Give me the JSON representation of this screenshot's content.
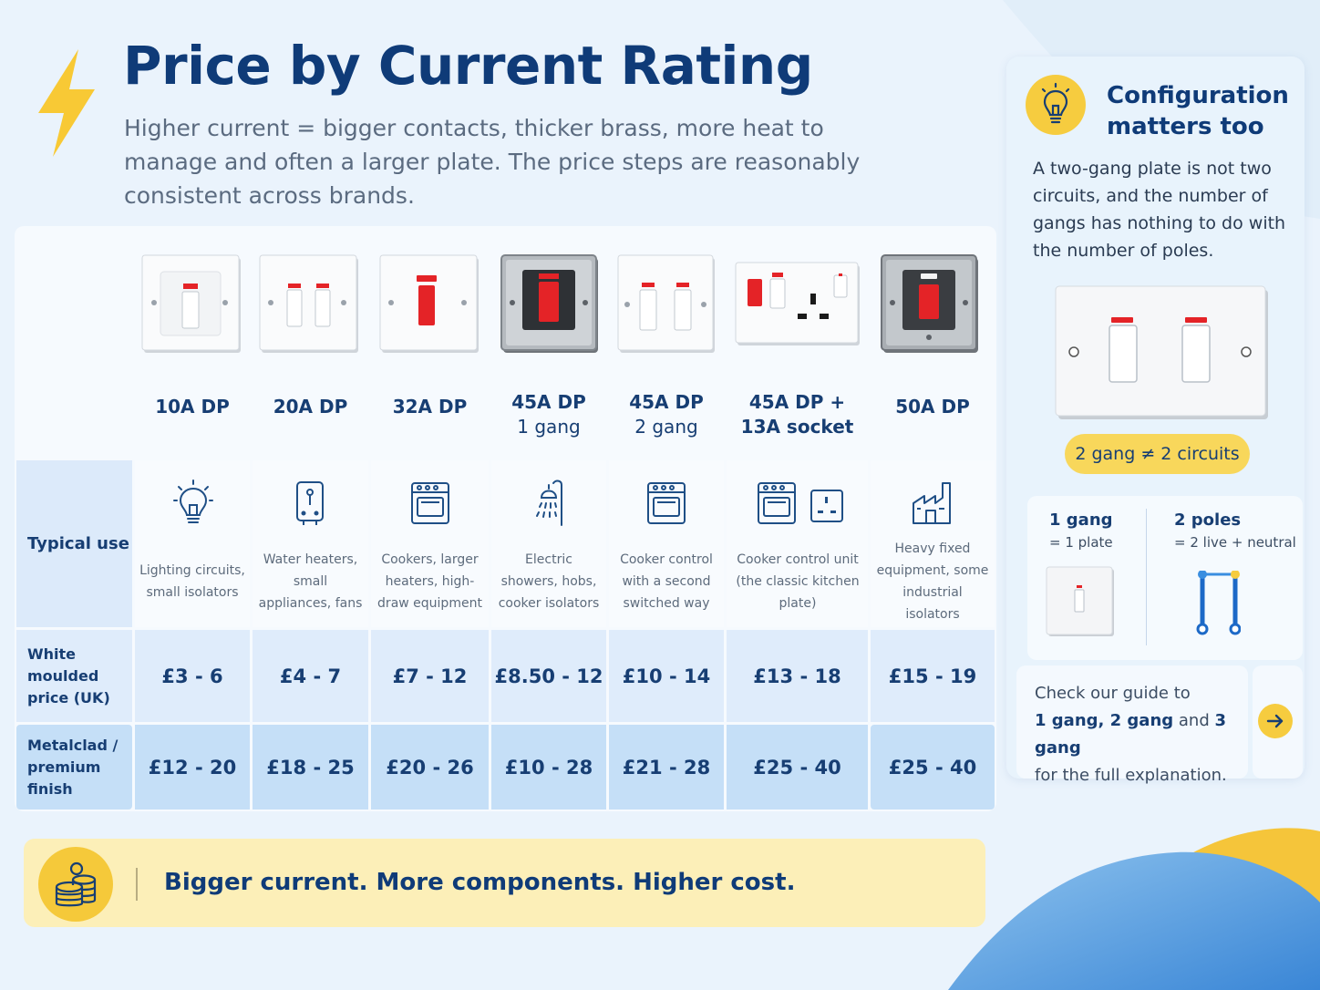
{
  "title": "Price by Current Rating",
  "subtitle": "Higher current = bigger contacts, thicker brass, more heat to manage and often a larger plate. The price steps are reasonably consistent across brands.",
  "table": {
    "columns": [
      {
        "label": "10A DP",
        "sub": "",
        "use": "Lighting circuits, small isolators",
        "use_icon": "lightbulb-icon",
        "white": "£3 - 6",
        "metal": "£12 - 20"
      },
      {
        "label": "20A DP",
        "sub": "",
        "use": "Water heaters, small appliances, fans",
        "use_icon": "water-heater-icon",
        "white": "£4 - 7",
        "metal": "£18 - 25"
      },
      {
        "label": "32A DP",
        "sub": "",
        "use": "Cookers, larger heaters, high-draw equipment",
        "use_icon": "oven-icon",
        "white": "£7 - 12",
        "metal": "£20 - 26"
      },
      {
        "label": "45A DP",
        "sub": "1 gang",
        "use": "Electric showers, hobs, cooker isolators",
        "use_icon": "shower-icon",
        "white": "£8.50 - 12",
        "metal": "£10 - 28"
      },
      {
        "label": "45A DP",
        "sub": "2 gang",
        "use": "Cooker control with a second switched way",
        "use_icon": "oven-icon",
        "white": "£10 - 14",
        "metal": "£21 - 28"
      },
      {
        "label": "45A DP +",
        "sub": "13A socket",
        "use": "Cooker control unit (the classic kitchen plate)",
        "use_icon": "oven-socket-icon",
        "white": "£13 - 18",
        "metal": "£25 - 40"
      },
      {
        "label": "50A DP",
        "sub": "",
        "use": "Heavy fixed equipment, some industrial isolators",
        "use_icon": "factory-icon",
        "white": "£15 - 19",
        "metal": "£25 - 40"
      }
    ],
    "row_labels": {
      "use": "Typical use",
      "white_1": "White moulded",
      "white_2": "price (UK)",
      "metal_1": "Metalclad /",
      "metal_2": "premium finish"
    }
  },
  "side": {
    "title_1": "Configuration",
    "title_2": "matters too",
    "body": "A two-gang plate is not two circuits, and the number of gangs has nothing to do with the number of poles.",
    "pill": "2 gang ≠ 2 circuits",
    "gang_label": "1 gang",
    "gang_sub": "= 1 plate",
    "poles_label": "2 poles",
    "poles_sub": "= 2 live + neutral",
    "guide_1": "Check our guide to",
    "guide_b1": "1 gang, 2 gang",
    "guide_and": " and ",
    "guide_b2": "3 gang",
    "guide_3": "for the full explanation."
  },
  "footer": {
    "text": "Bigger current. More components. Higher cost."
  },
  "colors": {
    "accent": "#f6cc3f",
    "navy": "#0f3b78",
    "switch_red": "#e42327"
  }
}
